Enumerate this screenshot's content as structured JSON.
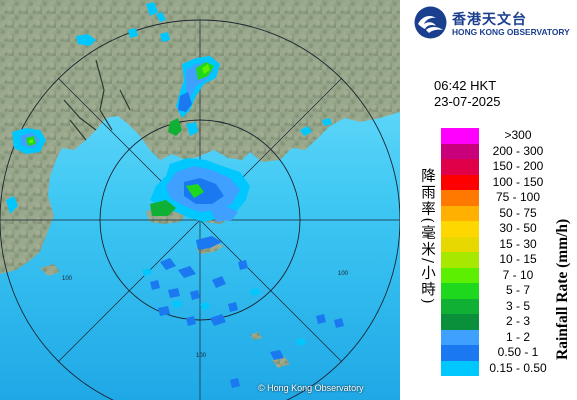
{
  "header": {
    "org_name_zh": "香港天文台",
    "org_name_en": "HONG KONG OBSERVATORY"
  },
  "observation": {
    "time": "06:42 HKT",
    "date": "23-07-2025"
  },
  "legend": {
    "title_zh": "降雨率(毫米/小時)",
    "title_en": "Rainfall Rate (mm/h)",
    "ranges": [
      {
        "label": ">300",
        "color": "#ff00ff"
      },
      {
        "label": "200 - 300",
        "color": "#c8007c"
      },
      {
        "label": "150 - 200",
        "color": "#e0004a"
      },
      {
        "label": "100 - 150",
        "color": "#ff0000"
      },
      {
        "label": "75 - 100",
        "color": "#ff7800"
      },
      {
        "label": "50 - 75",
        "color": "#ffb000"
      },
      {
        "label": "30 - 50",
        "color": "#ffd700"
      },
      {
        "label": "15 - 30",
        "color": "#e6d800"
      },
      {
        "label": "10 - 15",
        "color": "#a6e800"
      },
      {
        "label": "7 - 10",
        "color": "#5cf000"
      },
      {
        "label": "5 - 7",
        "color": "#1ed81e"
      },
      {
        "label": "3 - 5",
        "color": "#10b034"
      },
      {
        "label": "2 - 3",
        "color": "#0a8f3a"
      },
      {
        "label": "1 - 2",
        "color": "#3fa0ff"
      },
      {
        "label": "0.50 - 1",
        "color": "#1a78f0"
      },
      {
        "label": "0.15 - 0.50",
        "color": "#00c8ff"
      }
    ]
  },
  "map": {
    "copyright": "© Hong Kong Observatory",
    "range_ring_labels": [
      "100",
      "100",
      "100"
    ]
  }
}
